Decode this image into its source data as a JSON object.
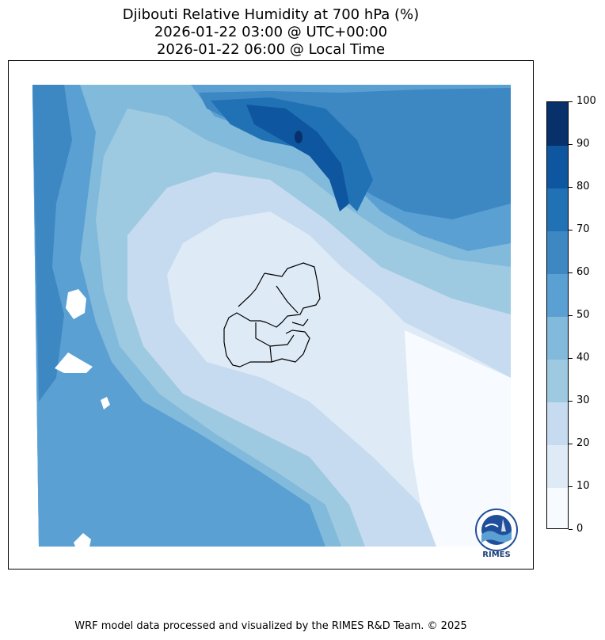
{
  "title": {
    "line1": "Djibouti Relative Humidity at 700 hPa (%)",
    "line2": "2026-01-22 03:00 @ UTC+00:00",
    "line3": "2026-01-22 06:00 @ Local Time"
  },
  "colorbar": {
    "ticks": [
      "0",
      "10",
      "20",
      "30",
      "40",
      "50",
      "60",
      "70",
      "80",
      "90",
      "100"
    ],
    "colors": [
      "#f7fbff",
      "#deebf7",
      "#c6dbef",
      "#9ecae1",
      "#82badb",
      "#5aa0d3",
      "#3d87c3",
      "#2171b5",
      "#0f56a0",
      "#08306b"
    ]
  },
  "logo": {
    "text": "RIMES",
    "icon": "rimes-logo-icon"
  },
  "footer": "WRF model data processed and visualized by the RIMES R&D Team. © 2025"
}
